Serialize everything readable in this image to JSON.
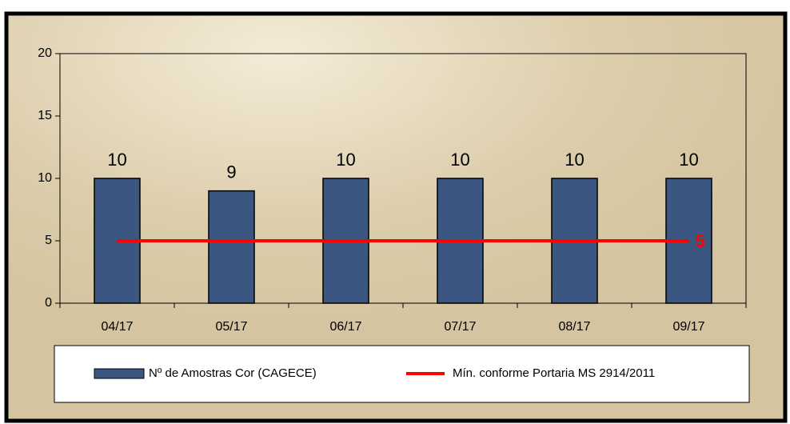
{
  "chart_data": {
    "type": "bar",
    "categories": [
      "04/17",
      "05/17",
      "06/17",
      "07/17",
      "08/17",
      "09/17"
    ],
    "series": [
      {
        "name": "Nº de Amostras Cor (CAGECE)",
        "type": "bar",
        "color": "#3b5781",
        "values": [
          10,
          9,
          10,
          10,
          10,
          10
        ]
      },
      {
        "name": "Mín. conforme Portaria MS 2914/2011",
        "type": "line",
        "color": "#ff0000",
        "values": [
          5,
          5,
          5,
          5,
          5,
          5
        ],
        "value_labels": [
          null,
          null,
          null,
          null,
          null,
          "5"
        ]
      }
    ],
    "ylim": [
      0,
      20
    ],
    "yticks": [
      0,
      5,
      10,
      15,
      20
    ],
    "legend": "bottom"
  }
}
